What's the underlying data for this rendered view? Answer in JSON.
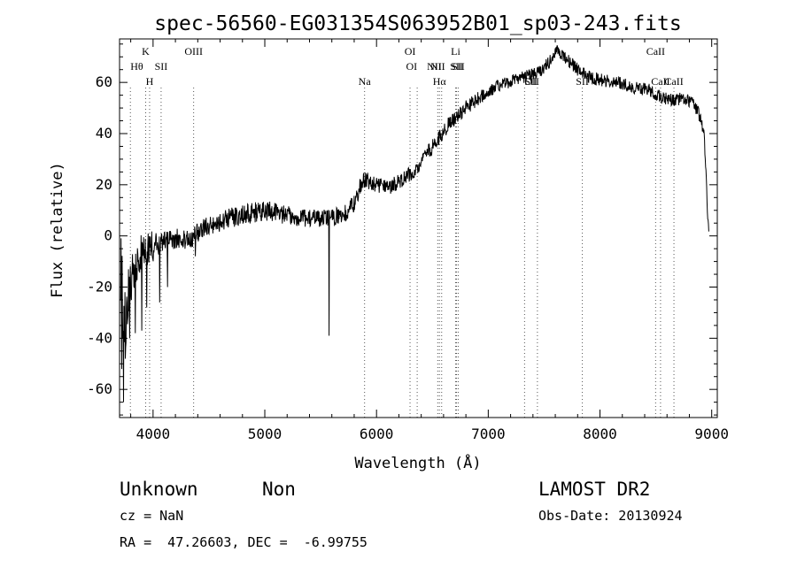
{
  "chart_data": {
    "type": "line",
    "title": "spec-56560-EG031354S063952B01_sp03-243.fits",
    "xlabel": "Wavelength (Å)",
    "ylabel": "Flux (relative)",
    "xlim": [
      3700,
      9050
    ],
    "ylim": [
      -71,
      77
    ],
    "x_ticks": [
      4000,
      5000,
      6000,
      7000,
      8000,
      9000
    ],
    "y_ticks": [
      -60,
      -40,
      -20,
      0,
      20,
      40,
      60
    ],
    "grid": false,
    "series": [
      {
        "type": "noisy-spectrum",
        "points": [
          [
            3710,
            -10,
            32
          ],
          [
            3740,
            -38,
            28
          ],
          [
            3780,
            -20,
            24
          ],
          [
            3820,
            -12,
            22
          ],
          [
            3870,
            -8,
            18
          ],
          [
            3930,
            -6,
            15
          ],
          [
            4000,
            -4,
            12
          ],
          [
            4100,
            -2,
            8
          ],
          [
            4200,
            -1,
            8
          ],
          [
            4300,
            -2,
            8
          ],
          [
            4400,
            1,
            8
          ],
          [
            4500,
            4,
            8
          ],
          [
            4700,
            7,
            8
          ],
          [
            4900,
            9,
            8
          ],
          [
            5000,
            10,
            8
          ],
          [
            5100,
            9,
            8
          ],
          [
            5300,
            7,
            7
          ],
          [
            5500,
            7,
            7
          ],
          [
            5700,
            8,
            7
          ],
          [
            5800,
            13,
            7
          ],
          [
            5850,
            19,
            7
          ],
          [
            5900,
            22,
            7
          ],
          [
            6000,
            20,
            6
          ],
          [
            6100,
            19,
            6
          ],
          [
            6200,
            21,
            6
          ],
          [
            6350,
            26,
            6
          ],
          [
            6450,
            32,
            6
          ],
          [
            6550,
            38,
            6
          ],
          [
            6650,
            44,
            6
          ],
          [
            6800,
            50,
            6
          ],
          [
            6950,
            55,
            5
          ],
          [
            7100,
            59,
            5
          ],
          [
            7300,
            62,
            5
          ],
          [
            7450,
            64,
            5
          ],
          [
            7550,
            68,
            5
          ],
          [
            7620,
            73,
            5
          ],
          [
            7700,
            69,
            5
          ],
          [
            7800,
            65,
            5
          ],
          [
            7900,
            62,
            5
          ],
          [
            8000,
            61,
            5
          ],
          [
            8150,
            60,
            5
          ],
          [
            8300,
            58,
            5
          ],
          [
            8450,
            57,
            5
          ],
          [
            8550,
            54,
            5
          ],
          [
            8650,
            53,
            5
          ],
          [
            8750,
            54,
            5
          ],
          [
            8850,
            51,
            5
          ],
          [
            8900,
            46,
            5
          ],
          [
            8930,
            40,
            4
          ],
          [
            8950,
            25,
            4
          ],
          [
            8960,
            10,
            3
          ],
          [
            8975,
            2,
            2
          ]
        ],
        "dips": [
          [
            3720,
            -52
          ],
          [
            3735,
            -65
          ],
          [
            3752,
            -48
          ],
          [
            3790,
            -40
          ],
          [
            3840,
            -38
          ],
          [
            3900,
            -37
          ],
          [
            3945,
            -28
          ],
          [
            4060,
            -26
          ],
          [
            4130,
            -20
          ],
          [
            4380,
            -8
          ],
          [
            5577,
            -39
          ]
        ]
      }
    ],
    "lines": [
      {
        "label": "Hθ",
        "x": 3797,
        "row": 3,
        "align": "start"
      },
      {
        "label": "K",
        "x": 3934,
        "row": 1,
        "align": "middle"
      },
      {
        "label": "H",
        "x": 3969,
        "row": 4,
        "align": "middle"
      },
      {
        "label": "SII",
        "x": 4072,
        "row": 3,
        "align": "middle"
      },
      {
        "label": "OIII",
        "x": 4363,
        "row": 2,
        "align": "middle"
      },
      {
        "label": "Na",
        "x": 5893,
        "row": 4,
        "align": "middle"
      },
      {
        "label": "OI",
        "x": 6300,
        "row": 2,
        "align": "middle"
      },
      {
        "label": "OI",
        "x": 6364,
        "row": 3,
        "align": "end"
      },
      {
        "label": "NII",
        "x": 6548,
        "row": 3,
        "align": "middle"
      },
      {
        "label": "Hα",
        "x": 6563,
        "row": 4,
        "align": "middle"
      },
      {
        "label": "NII",
        "x": 6583,
        "row": 3,
        "align": "end"
      },
      {
        "label": "Li",
        "x": 6708,
        "row": 2,
        "align": "middle"
      },
      {
        "label": "SII",
        "x": 6716,
        "row": 3,
        "align": "middle"
      },
      {
        "label": "SII",
        "x": 6731,
        "row": 3,
        "align": "middle"
      },
      {
        "label": "OII",
        "x": 7325,
        "row": 4,
        "align": "start"
      },
      {
        "label": "SII",
        "x": 7440,
        "row": 4,
        "align": "end"
      },
      {
        "label": "SII",
        "x": 7842,
        "row": 4,
        "align": "middle"
      },
      {
        "label": "CaII",
        "x": 8498,
        "row": 2,
        "align": "middle"
      },
      {
        "label": "CaII",
        "x": 8542,
        "row": 4,
        "align": "middle"
      },
      {
        "label": "CaII",
        "x": 8662,
        "row": 4,
        "align": "middle"
      }
    ]
  },
  "info": {
    "class_label": "Unknown",
    "subclass_label": "Non",
    "survey": "LAMOST DR2",
    "cz": "cz = NaN",
    "obs_date": "Obs-Date: 20130924",
    "coords": "RA =  47.26603, DEC =  -6.99755"
  }
}
